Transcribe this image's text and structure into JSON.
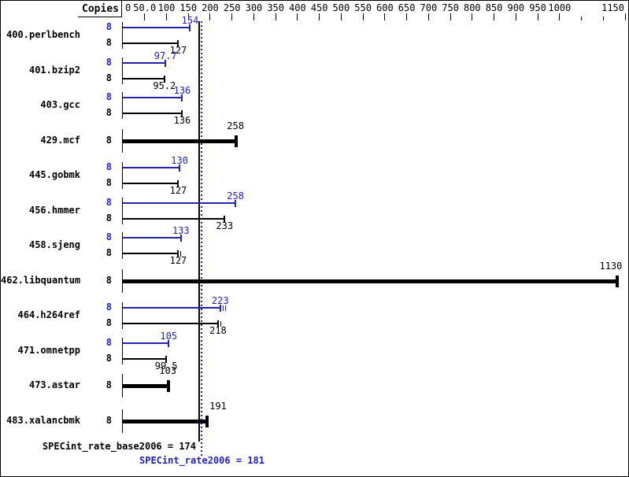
{
  "chart_data": {
    "type": "bar",
    "orientation": "horizontal",
    "title": "",
    "copies_header": "Copies",
    "colors": {
      "peak": "#2222aa",
      "base": "#000000",
      "background": "#ffffff",
      "border": "#000000"
    },
    "axis": {
      "min": 0,
      "max": 1150,
      "tick_step": 50,
      "ticks": [
        {
          "v": 0,
          "label": "0"
        },
        {
          "v": 50,
          "label": "50.0"
        },
        {
          "v": 100,
          "label": "100"
        },
        {
          "v": 150,
          "label": "150"
        },
        {
          "v": 200,
          "label": "200"
        },
        {
          "v": 250,
          "label": "250"
        },
        {
          "v": 300,
          "label": "300"
        },
        {
          "v": 350,
          "label": "350"
        },
        {
          "v": 400,
          "label": "400"
        },
        {
          "v": 450,
          "label": "450"
        },
        {
          "v": 500,
          "label": "500"
        },
        {
          "v": 550,
          "label": "550"
        },
        {
          "v": 600,
          "label": "600"
        },
        {
          "v": 650,
          "label": "650"
        },
        {
          "v": 700,
          "label": "700"
        },
        {
          "v": 750,
          "label": "750"
        },
        {
          "v": 800,
          "label": "800"
        },
        {
          "v": 850,
          "label": "850"
        },
        {
          "v": 900,
          "label": "900"
        },
        {
          "v": 950,
          "label": "950"
        },
        {
          "v": 1000,
          "label": "1000"
        },
        {
          "v": 1050,
          "label": ""
        },
        {
          "v": 1100,
          "label": ""
        },
        {
          "v": 1150,
          "label": "1150"
        }
      ]
    },
    "benchmarks": [
      {
        "name": "400.perlbench",
        "copies": "8",
        "peak": 154,
        "peak_label": "154",
        "base": 127,
        "base_label": "127"
      },
      {
        "name": "401.bzip2",
        "copies": "8",
        "peak": 97.7,
        "peak_label": "97.7",
        "base": 95.2,
        "base_label": "95.2"
      },
      {
        "name": "403.gcc",
        "copies": "8",
        "peak": 136,
        "peak_label": "136",
        "base": 136,
        "base_label": "136"
      },
      {
        "name": "429.mcf",
        "copies": "8",
        "value": 258,
        "value_label": "258"
      },
      {
        "name": "445.gobmk",
        "copies": "8",
        "peak": 130,
        "peak_label": "130",
        "base": 127,
        "base_label": "127"
      },
      {
        "name": "456.hmmer",
        "copies": "8",
        "peak": 258,
        "peak_label": "258",
        "base": 233,
        "base_label": "233"
      },
      {
        "name": "458.sjeng",
        "copies": "8",
        "peak": 133,
        "peak_label": "133",
        "base": 127,
        "base_label": "127",
        "base_extra_marks": [
          3
        ]
      },
      {
        "name": "462.libquantum",
        "copies": "8",
        "value": 1130,
        "value_label": "1130",
        "label_dx": -7
      },
      {
        "name": "464.h264ref",
        "copies": "8",
        "peak": 223,
        "peak_label": "223",
        "base": 218,
        "base_label": "218",
        "peak_extra_marks": [
          3,
          6
        ],
        "base_extra_marks": [
          3
        ]
      },
      {
        "name": "471.omnetpp",
        "copies": "8",
        "peak": 105,
        "peak_label": "105",
        "base": 99.5,
        "base_label": "99.5"
      },
      {
        "name": "473.astar",
        "copies": "8",
        "value": 103,
        "value_label": "103"
      },
      {
        "name": "483.xalancbmk",
        "copies": "8",
        "value": 191,
        "value_label": "191",
        "label_dx": 15
      }
    ],
    "reference_lines": [
      {
        "name": "base",
        "label": "SPECint_rate_base2006 = 174",
        "value": 174,
        "style": "solid",
        "color": "#000000"
      },
      {
        "name": "peak",
        "label": "SPECint_rate2006 = 181",
        "value": 181,
        "style": "dotted",
        "color": "#2222aa"
      }
    ]
  }
}
